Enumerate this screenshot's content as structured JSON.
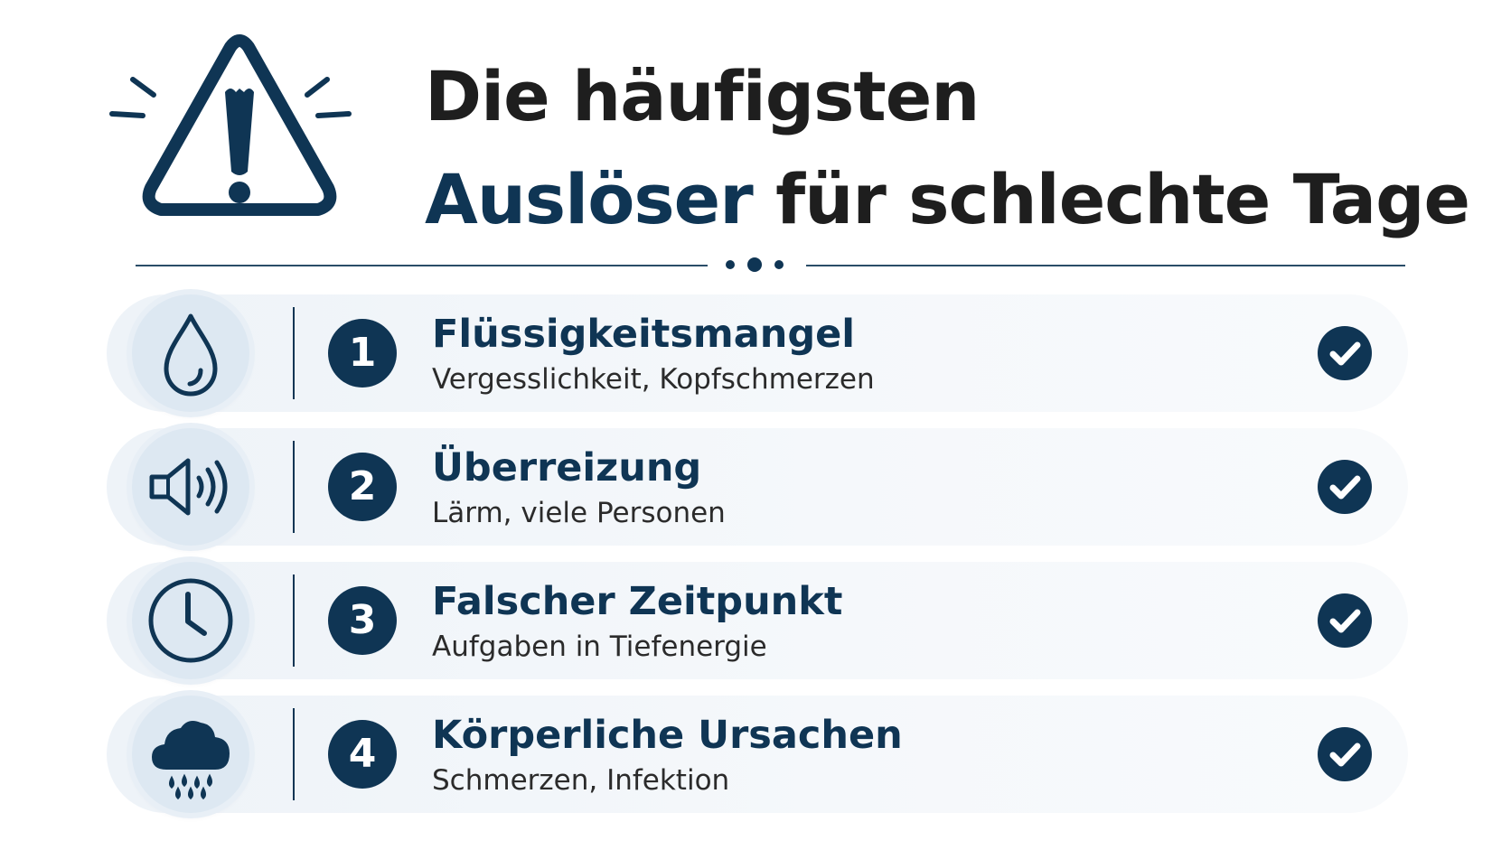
{
  "header": {
    "title_line1": "Die häufigsten",
    "title_accent": "Auslöser",
    "title_rest": "für schlechte Tage",
    "icon": "warning-triangle-icon"
  },
  "items": [
    {
      "number": "1",
      "title": "Flüssigkeitsmangel",
      "subtitle": "Vergesslichkeit, Kopfschmerzen",
      "icon": "water-drop-icon"
    },
    {
      "number": "2",
      "title": "Überreizung",
      "subtitle": "Lärm, viele Personen",
      "icon": "speaker-icon"
    },
    {
      "number": "3",
      "title": "Falscher Zeitpunkt",
      "subtitle": "Aufgaben in Tiefenergie",
      "icon": "clock-icon"
    },
    {
      "number": "4",
      "title": "Körperliche Ursachen",
      "subtitle": "Schmerzen, Infektion",
      "icon": "rain-cloud-icon"
    }
  ],
  "colors": {
    "accent": "#0f3554",
    "text": "#1e1e1e",
    "row_background": "#f2f6fa",
    "icon_circle": "#dde8f2"
  }
}
